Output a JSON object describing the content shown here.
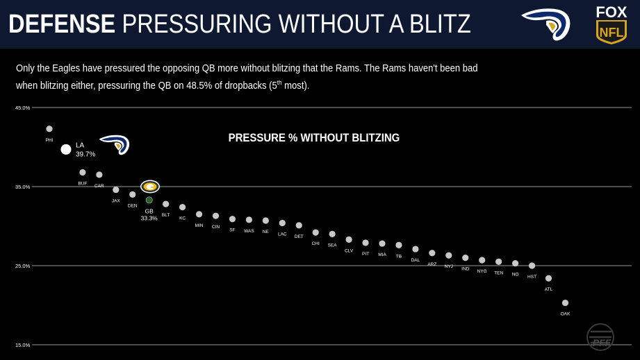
{
  "header": {
    "title_bold": "DEFENSE",
    "title_light": "PRESSURING WITHOUT A BLITZ",
    "background": "#0e1830",
    "fox_line1": "FOX",
    "fox_line2": "NFL"
  },
  "subtitle": {
    "line1": "Only the Eagles have pressured the opposing QB more without blitzing that the Rams. The Rams haven't been bad",
    "line2_before": "when blitzing either, pressuring the QB on 48.5% of dropbacks (5",
    "line2_sup": "th",
    "line2_after": " most)."
  },
  "watermark": "PFF",
  "chart_data": {
    "type": "scatter",
    "title": "PRESSURE % WITHOUT BLITZING",
    "ylim": [
      15,
      45
    ],
    "yticks": [
      "45.0%",
      "35.0%",
      "25.0%",
      "15.0%"
    ],
    "ytick_values": [
      45,
      35,
      25,
      15
    ],
    "grid": true,
    "colors": {
      "point": "#c8c8c8",
      "highlight_la": "#ffffff",
      "highlight_gb": "#2e5a2e",
      "grid": "#9a9a9a"
    },
    "points": [
      {
        "team": "PHI",
        "value": 42.3
      },
      {
        "team": "LA",
        "value": 39.7,
        "display": "39.7%",
        "highlight": "la"
      },
      {
        "team": "BUF",
        "value": 36.8
      },
      {
        "team": "CAR",
        "value": 36.5
      },
      {
        "team": "JAX",
        "value": 34.6
      },
      {
        "team": "DEN",
        "value": 34.0
      },
      {
        "team": "GB",
        "value": 33.3,
        "display": "33.3%",
        "highlight": "gb"
      },
      {
        "team": "BLT",
        "value": 32.8
      },
      {
        "team": "KC",
        "value": 32.4
      },
      {
        "team": "MIN",
        "value": 31.5
      },
      {
        "team": "CIN",
        "value": 31.3
      },
      {
        "team": "SF",
        "value": 30.9
      },
      {
        "team": "WAS",
        "value": 30.8
      },
      {
        "team": "NE",
        "value": 30.7
      },
      {
        "team": "LAC",
        "value": 30.4
      },
      {
        "team": "DET",
        "value": 30.1
      },
      {
        "team": "CHI",
        "value": 29.2
      },
      {
        "team": "SEA",
        "value": 29.0
      },
      {
        "team": "CLV",
        "value": 28.3
      },
      {
        "team": "PIT",
        "value": 27.9
      },
      {
        "team": "MIA",
        "value": 27.8
      },
      {
        "team": "TB",
        "value": 27.6
      },
      {
        "team": "DAL",
        "value": 27.1
      },
      {
        "team": "ARZ",
        "value": 26.6
      },
      {
        "team": "NYJ",
        "value": 26.3
      },
      {
        "team": "IND",
        "value": 26.0
      },
      {
        "team": "NYG",
        "value": 25.7
      },
      {
        "team": "TEN",
        "value": 25.5
      },
      {
        "team": "NO",
        "value": 25.3
      },
      {
        "team": "HST",
        "value": 25.0
      },
      {
        "team": "ATL",
        "value": 23.4
      },
      {
        "team": "OAK",
        "value": 20.3
      }
    ]
  }
}
